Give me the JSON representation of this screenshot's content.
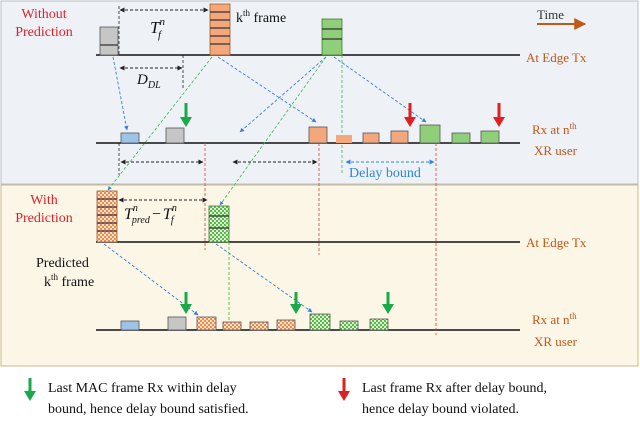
{
  "colors": {
    "top_panel_bg": "#eef1f6",
    "bottom_panel_bg": "#fbf6e6",
    "heading_red": "#e0202a",
    "orange_frame": "#f4a77a",
    "green_frame": "#8fcf7a",
    "gray_frame": "#c6c6c6",
    "blue_frame": "#9dc3e6",
    "arrow_green": "#19a94a",
    "arrow_red": "#e02020",
    "line_blue": "#3b7dd8",
    "line_red": "#d94040",
    "line_green": "#39b54a",
    "delay_blue": "#2e86de",
    "time_arrow": "#c0581a"
  },
  "labels": {
    "without_prediction_line1": "Without",
    "without_prediction_line2": "Prediction",
    "with_prediction_line1": "With",
    "with_prediction_line2": "Prediction",
    "k_frame_base": "k",
    "k_frame_sup": "th",
    "k_frame_rest": " frame",
    "time": "Time",
    "edge_tx_top": "At Edge Tx",
    "edge_tx_bottom": "At Edge Tx",
    "rx_line1_top_base": "Rx at n",
    "rx_line1_top_sup": "th",
    "rx_line2_top": "XR user",
    "rx_line1_bottom_base": "Rx at n",
    "rx_line1_bottom_sup": "th",
    "rx_line2_bottom": "XR user",
    "delay_bound": "Delay bound",
    "predicted_line1": "Predicted",
    "predicted_k_base": "k",
    "predicted_k_sup": "th",
    "predicted_k_rest": " frame",
    "tf_T": "T",
    "tf_sup": "n",
    "tf_sub": "f",
    "ddl_D": "D",
    "ddl_sub": "DL",
    "tpred_T": "T",
    "tpred_sup": "n",
    "tpred_sub": "pred",
    "tpred_minus": "−",
    "tpred_T2": "T",
    "tpred_sup2": "n",
    "tpred_sub2": "f"
  },
  "legend": {
    "green_line1": "Last MAC frame Rx within delay",
    "green_line2": "bound, hence delay bound satisfied.",
    "red_line1": "Last frame Rx after delay bound,",
    "red_line2": "hence delay bound violated."
  }
}
